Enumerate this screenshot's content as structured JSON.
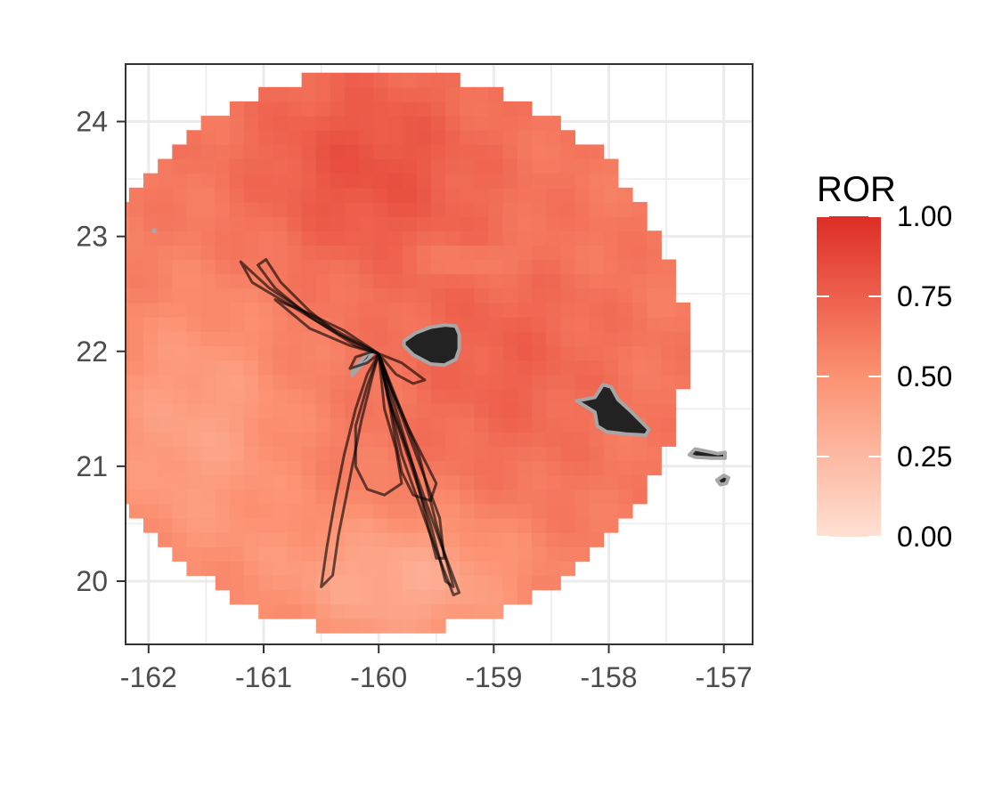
{
  "chart_data": {
    "type": "heatmap",
    "title": "",
    "xlabel": "",
    "ylabel": "",
    "xlim": [
      -162.2,
      -156.75
    ],
    "ylim": [
      19.45,
      24.5
    ],
    "x_ticks": [
      -162,
      -161,
      -160,
      -159,
      -158,
      -157
    ],
    "x_tick_labels": [
      "-162",
      "-161",
      "-160",
      "-159",
      "-158",
      "-157"
    ],
    "y_ticks": [
      20,
      21,
      22,
      23,
      24
    ],
    "y_tick_labels": [
      "20",
      "21",
      "22",
      "23",
      "24"
    ],
    "grid": true,
    "legend": {
      "title": "ROR",
      "placement": "right",
      "breaks": [
        0,
        0.25,
        0.5,
        0.75,
        1
      ],
      "labels": [
        "0.00",
        "0.25",
        "0.50",
        "0.75",
        "1.00"
      ],
      "colors": [
        "#fee0d2",
        "#fc9272",
        "#de2d26"
      ],
      "range": [
        0,
        1
      ]
    },
    "raster": {
      "center_lon": -159.97,
      "center_lat": 22.0,
      "radius_deg": 2.45,
      "cell_deg": 0.125,
      "description_value_field": "ROR"
    },
    "islands": [
      {
        "name": "kauai",
        "fill": "#222222",
        "stroke": "#a6a6a6",
        "lonlat": [
          [
            -159.78,
            22.05
          ],
          [
            -159.7,
            21.97
          ],
          [
            -159.55,
            21.89
          ],
          [
            -159.43,
            21.88
          ],
          [
            -159.33,
            21.93
          ],
          [
            -159.3,
            22.02
          ],
          [
            -159.3,
            22.15
          ],
          [
            -159.33,
            22.22
          ],
          [
            -159.42,
            22.23
          ],
          [
            -159.55,
            22.21
          ],
          [
            -159.68,
            22.16
          ],
          [
            -159.78,
            22.09
          ]
        ]
      },
      {
        "name": "niihau",
        "fill": "#222222",
        "stroke": "#a6a6a6",
        "lonlat": [
          [
            -160.23,
            21.79
          ],
          [
            -160.18,
            21.85
          ],
          [
            -160.09,
            21.93
          ],
          [
            -160.05,
            22.0
          ],
          [
            -160.08,
            22.0
          ],
          [
            -160.15,
            21.92
          ],
          [
            -160.22,
            21.84
          ]
        ]
      },
      {
        "name": "oahu",
        "fill": "#222222",
        "stroke": "#a6a6a6",
        "lonlat": [
          [
            -158.28,
            21.57
          ],
          [
            -158.12,
            21.47
          ],
          [
            -158.1,
            21.35
          ],
          [
            -158.02,
            21.3
          ],
          [
            -157.85,
            21.28
          ],
          [
            -157.68,
            21.27
          ],
          [
            -157.65,
            21.32
          ],
          [
            -157.73,
            21.4
          ],
          [
            -157.8,
            21.47
          ],
          [
            -157.92,
            21.58
          ],
          [
            -157.98,
            21.69
          ],
          [
            -158.05,
            21.71
          ],
          [
            -158.12,
            21.6
          ],
          [
            -158.22,
            21.58
          ]
        ]
      },
      {
        "name": "molokai",
        "fill": "#222222",
        "stroke": "#a6a6a6",
        "lonlat": [
          [
            -157.3,
            21.1
          ],
          [
            -157.25,
            21.15
          ],
          [
            -157.15,
            21.13
          ],
          [
            -157.05,
            21.11
          ],
          [
            -156.99,
            21.12
          ],
          [
            -156.99,
            21.07
          ],
          [
            -157.1,
            21.07
          ],
          [
            -157.25,
            21.08
          ]
        ]
      },
      {
        "name": "lanai",
        "fill": "#222222",
        "stroke": "#a6a6a6",
        "lonlat": [
          [
            -157.06,
            20.88
          ],
          [
            -157.0,
            20.92
          ],
          [
            -156.96,
            20.9
          ],
          [
            -156.98,
            20.85
          ],
          [
            -157.03,
            20.84
          ]
        ]
      }
    ],
    "lehua": {
      "lon": -161.95,
      "lat": 23.05
    },
    "tracks": [
      [
        [
          -160.0,
          21.98
        ],
        [
          -160.35,
          22.15
        ],
        [
          -160.6,
          22.35
        ],
        [
          -160.85,
          22.6
        ],
        [
          -160.98,
          22.8
        ],
        [
          -161.05,
          22.75
        ],
        [
          -160.9,
          22.55
        ],
        [
          -160.6,
          22.3
        ],
        [
          -160.2,
          22.05
        ],
        [
          -160.0,
          21.98
        ]
      ],
      [
        [
          -160.0,
          21.98
        ],
        [
          -160.5,
          22.25
        ],
        [
          -160.95,
          22.55
        ],
        [
          -161.2,
          22.78
        ],
        [
          -161.1,
          22.6
        ],
        [
          -160.8,
          22.42
        ],
        [
          -160.35,
          22.15
        ],
        [
          -160.0,
          21.98
        ]
      ],
      [
        [
          -160.0,
          21.98
        ],
        [
          -160.3,
          22.18
        ],
        [
          -160.65,
          22.35
        ],
        [
          -160.9,
          22.45
        ],
        [
          -160.6,
          22.2
        ],
        [
          -160.25,
          22.05
        ],
        [
          -160.0,
          21.98
        ]
      ],
      [
        [
          -160.0,
          21.98
        ],
        [
          -160.1,
          21.8
        ],
        [
          -160.2,
          21.5
        ],
        [
          -160.3,
          21.1
        ],
        [
          -160.38,
          20.7
        ],
        [
          -160.45,
          20.3
        ],
        [
          -160.5,
          19.95
        ],
        [
          -160.4,
          20.05
        ],
        [
          -160.35,
          20.4
        ],
        [
          -160.25,
          20.9
        ],
        [
          -160.15,
          21.4
        ],
        [
          -160.05,
          21.8
        ],
        [
          -160.0,
          21.98
        ]
      ],
      [
        [
          -160.0,
          21.98
        ],
        [
          -159.85,
          21.6
        ],
        [
          -159.65,
          21.1
        ],
        [
          -159.5,
          20.5
        ],
        [
          -159.35,
          19.95
        ],
        [
          -159.42,
          20.0
        ],
        [
          -159.55,
          20.5
        ],
        [
          -159.75,
          21.1
        ],
        [
          -159.92,
          21.6
        ],
        [
          -160.0,
          21.98
        ]
      ],
      [
        [
          -160.0,
          21.98
        ],
        [
          -159.9,
          21.7
        ],
        [
          -159.75,
          21.3
        ],
        [
          -159.6,
          20.9
        ],
        [
          -159.47,
          20.55
        ],
        [
          -159.43,
          20.2
        ],
        [
          -159.5,
          20.2
        ],
        [
          -159.6,
          20.6
        ],
        [
          -159.7,
          21.0
        ],
        [
          -159.88,
          21.5
        ],
        [
          -160.0,
          21.98
        ]
      ],
      [
        [
          -160.0,
          21.98
        ],
        [
          -160.1,
          21.7
        ],
        [
          -160.2,
          21.35
        ],
        [
          -160.2,
          21.0
        ],
        [
          -160.1,
          20.8
        ],
        [
          -159.95,
          20.75
        ],
        [
          -159.8,
          20.85
        ],
        [
          -159.85,
          21.15
        ],
        [
          -159.95,
          21.5
        ],
        [
          -160.0,
          21.98
        ]
      ],
      [
        [
          -160.0,
          21.98
        ],
        [
          -159.95,
          21.75
        ],
        [
          -159.9,
          21.5
        ],
        [
          -159.85,
          21.2
        ],
        [
          -159.8,
          20.95
        ],
        [
          -159.7,
          20.75
        ],
        [
          -159.55,
          20.7
        ],
        [
          -159.5,
          20.85
        ],
        [
          -159.6,
          21.05
        ],
        [
          -159.75,
          21.35
        ],
        [
          -159.9,
          21.7
        ],
        [
          -160.0,
          21.98
        ]
      ],
      [
        [
          -160.0,
          21.98
        ],
        [
          -159.8,
          21.9
        ],
        [
          -159.6,
          21.75
        ],
        [
          -159.7,
          21.72
        ],
        [
          -159.85,
          21.8
        ],
        [
          -160.0,
          21.98
        ]
      ],
      [
        [
          -160.0,
          21.98
        ],
        [
          -160.1,
          21.9
        ],
        [
          -160.25,
          21.85
        ],
        [
          -160.2,
          21.95
        ],
        [
          -160.05,
          22.0
        ]
      ],
      [
        [
          -160.0,
          21.98
        ],
        [
          -159.7,
          21.0
        ],
        [
          -159.45,
          20.3
        ],
        [
          -159.3,
          19.9
        ],
        [
          -159.35,
          19.88
        ],
        [
          -159.55,
          20.4
        ],
        [
          -159.8,
          21.1
        ],
        [
          -160.0,
          21.98
        ]
      ]
    ]
  }
}
